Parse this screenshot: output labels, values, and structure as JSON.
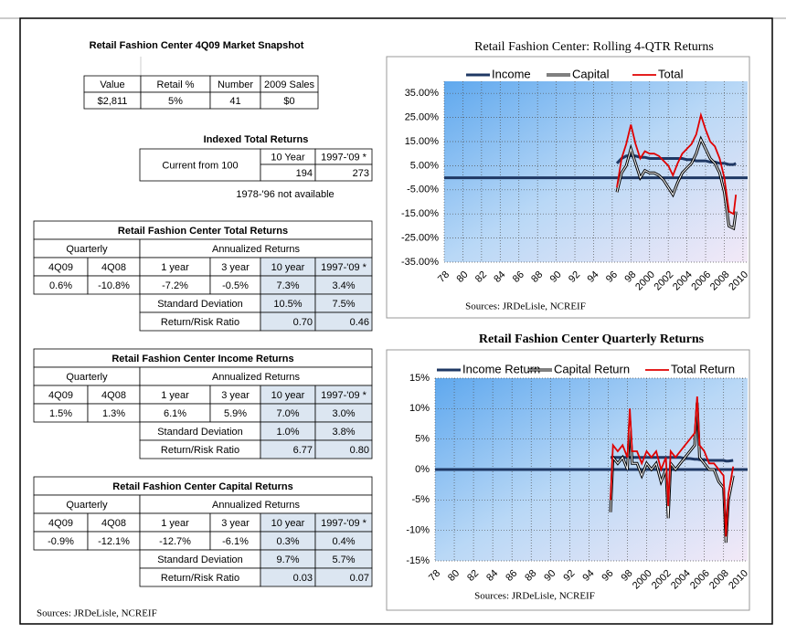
{
  "snapshot": {
    "title": "Retail Fashion Center 4Q09 Market Snapshot",
    "headers": [
      "Value",
      "Retail %",
      "Number",
      "2009 Sales"
    ],
    "row": [
      "$2,811",
      "5%",
      "41",
      "$0"
    ]
  },
  "indexed": {
    "title": "Indexed Total Returns",
    "label": "Current from 100",
    "headers": [
      "10 Year",
      "1997-'09 *"
    ],
    "values": [
      "194",
      "273"
    ],
    "note": "1978-'96 not available"
  },
  "returns": [
    {
      "title": "Retail Fashion Center Total Returns",
      "quarterly": "Quarterly",
      "annualized": "Annualized Returns",
      "headers": [
        "4Q09",
        "4Q08",
        "1 year",
        "3 year",
        "10 year",
        "1997-'09 *"
      ],
      "values": [
        "0.6%",
        "-10.8%",
        "-7.2%",
        "-0.5%",
        "7.3%",
        "3.4%"
      ],
      "std_label": "Standard Deviation",
      "std": [
        "10.5%",
        "7.5%"
      ],
      "ratio_label": "Return/Risk Ratio",
      "ratio": [
        "0.70",
        "0.46"
      ]
    },
    {
      "title": "Retail Fashion Center Income Returns",
      "quarterly": "Quarterly",
      "annualized": "Annualized Returns",
      "headers": [
        "4Q09",
        "4Q08",
        "1 year",
        "3 year",
        "10 year",
        "1997-'09 *"
      ],
      "values": [
        "1.5%",
        "1.3%",
        "6.1%",
        "5.9%",
        "7.0%",
        "3.0%"
      ],
      "std_label": "Standard Deviation",
      "std": [
        "1.0%",
        "3.8%"
      ],
      "ratio_label": "Return/Risk Ratio",
      "ratio": [
        "6.77",
        "0.80"
      ]
    },
    {
      "title": "Retail Fashion Center Capital Returns",
      "quarterly": "Quarterly",
      "annualized": "Annualized Returns",
      "headers": [
        "4Q09",
        "4Q08",
        "1 year",
        "3 year",
        "10 year",
        "1997-'09 *"
      ],
      "values": [
        "-0.9%",
        "-12.1%",
        "-12.7%",
        "-6.1%",
        "0.3%",
        "0.4%"
      ],
      "std_label": "Standard Deviation",
      "std": [
        "9.7%",
        "5.7%"
      ],
      "ratio_label": "Return/Risk Ratio",
      "ratio": [
        "0.03",
        "0.07"
      ]
    }
  ],
  "charts": [
    {
      "type": "line",
      "title": "Retail Fashion Center:  Rolling 4-QTR Returns",
      "source": "Sources: JRDeLisle, NCREIF",
      "grid": true,
      "x": [
        1996.5,
        1997,
        1997.5,
        1998,
        1998.5,
        1999,
        1999.5,
        2000,
        2000.5,
        2001,
        2001.5,
        2002,
        2002.5,
        2003,
        2003.5,
        2004,
        2004.5,
        2005,
        2005.5,
        2006,
        2006.5,
        2007,
        2007.5,
        2008,
        2008.5,
        2009,
        2009.25
      ],
      "xlim": [
        1978,
        2010.5
      ],
      "xticks": [
        {
          "value": 1978,
          "label": "78"
        },
        {
          "value": 1980,
          "label": "80"
        },
        {
          "value": 1982,
          "label": "82"
        },
        {
          "value": 1984,
          "label": "84"
        },
        {
          "value": 1986,
          "label": "86"
        },
        {
          "value": 1988,
          "label": "88"
        },
        {
          "value": 1990,
          "label": "90"
        },
        {
          "value": 1992,
          "label": "92"
        },
        {
          "value": 1994,
          "label": "94"
        },
        {
          "value": 1996,
          "label": "96"
        },
        {
          "value": 1998,
          "label": "98"
        },
        2000,
        2002,
        2004,
        2006,
        2008,
        2010
      ],
      "ylim": [
        -35,
        40
      ],
      "yticks": [
        {
          "value": 35,
          "label": "35.00%"
        },
        {
          "value": 25,
          "label": "25.00%"
        },
        {
          "value": 15,
          "label": "15.00%"
        },
        {
          "value": 5,
          "label": "5.00%"
        },
        {
          "value": -5,
          "label": "-5.00%"
        },
        {
          "value": -15,
          "label": "-15.00%"
        },
        {
          "value": -25,
          "label": "-25.00%"
        },
        {
          "value": -35,
          "label": "-35.00%"
        }
      ],
      "series": [
        {
          "name": "Income",
          "color": "#1f3864",
          "values": [
            6,
            8,
            9,
            9,
            9,
            8.5,
            8.5,
            8,
            8,
            8,
            8,
            8,
            8,
            8,
            8,
            7.5,
            7.5,
            7,
            7,
            7,
            6.5,
            6.5,
            6,
            6,
            5.5,
            5.5,
            6
          ]
        },
        {
          "name": "Capital",
          "color": "#000000",
          "values": [
            -6,
            2,
            5,
            12,
            6,
            0,
            3,
            2,
            2,
            1,
            -1,
            -4,
            -7,
            -2,
            2,
            4,
            6,
            10,
            16,
            12,
            8,
            6,
            2,
            -6,
            -20,
            -21,
            -14
          ]
        },
        {
          "name": "Total",
          "color": "#e00000",
          "values": [
            -4,
            8,
            14,
            22,
            14,
            8,
            11,
            10,
            10,
            9,
            7,
            5,
            1,
            6,
            10,
            12,
            14,
            18,
            26,
            20,
            15,
            13,
            8,
            0,
            -14,
            -15,
            -7
          ]
        }
      ]
    },
    {
      "type": "line",
      "title": "Retail Fashion Center Quarterly Returns",
      "source": "Sources: JRDeLisle, NCREIF",
      "grid": true,
      "x": [
        1996.25,
        1996.5,
        1997,
        1997.5,
        1998,
        1998.25,
        1998.5,
        1999,
        1999.5,
        2000,
        2000.5,
        2001,
        2001.5,
        2002,
        2002.25,
        2002.5,
        2003,
        2003.5,
        2004,
        2004.5,
        2005,
        2005.25,
        2005.5,
        2006,
        2006.5,
        2007,
        2007.5,
        2008,
        2008.25,
        2008.5,
        2009
      ],
      "xlim": [
        1978,
        2010.5
      ],
      "xticks": [
        {
          "value": 1978,
          "label": "78"
        },
        {
          "value": 1980,
          "label": "80"
        },
        {
          "value": 1982,
          "label": "82"
        },
        {
          "value": 1984,
          "label": "84"
        },
        {
          "value": 1986,
          "label": "86"
        },
        {
          "value": 1988,
          "label": "88"
        },
        {
          "value": 1990,
          "label": "90"
        },
        {
          "value": 1992,
          "label": "92"
        },
        {
          "value": 1994,
          "label": "94"
        },
        {
          "value": 1996,
          "label": "96"
        },
        {
          "value": 1998,
          "label": "98"
        },
        2000,
        2002,
        2004,
        2006,
        2008,
        2010
      ],
      "ylim": [
        -15,
        15
      ],
      "yticks": [
        {
          "value": 15,
          "label": "15%"
        },
        {
          "value": 10,
          "label": "10%"
        },
        {
          "value": 5,
          "label": "5%"
        },
        {
          "value": 0,
          "label": "0%"
        },
        {
          "value": -5,
          "label": "-5%"
        },
        {
          "value": -10,
          "label": "-10%"
        },
        {
          "value": -15,
          "label": "-15%"
        }
      ],
      "series": [
        {
          "name": "Income Return",
          "color": "#1f3864",
          "values": [
            2,
            2,
            2,
            2,
            2,
            2,
            2,
            2,
            2,
            2,
            2,
            2,
            2,
            2,
            2,
            2,
            2,
            2,
            1.8,
            1.8,
            1.7,
            1.7,
            1.6,
            1.6,
            1.5,
            1.5,
            1.5,
            1.5,
            1.4,
            1.4,
            1.5
          ]
        },
        {
          "name": "Capital Return",
          "color": "#000000",
          "values": [
            -7,
            2,
            1,
            2,
            0,
            8,
            1,
            1,
            -1,
            1,
            0,
            1,
            -2,
            0,
            -8,
            1,
            0,
            1,
            2,
            3,
            4,
            11,
            2,
            1,
            0,
            0,
            -2,
            -3,
            -12,
            -5,
            -1
          ]
        },
        {
          "name": "Total Return",
          "color": "#e00000",
          "values": [
            -5,
            4,
            3,
            4,
            2,
            10,
            3,
            3,
            1,
            3,
            2,
            3,
            0,
            2,
            -6,
            3,
            2,
            3,
            4,
            5,
            6,
            12,
            4,
            3,
            1,
            1,
            0,
            -1,
            -11,
            -4,
            0.5
          ]
        }
      ]
    }
  ],
  "footer": "Sources: JRDeLisle, NCREIF"
}
